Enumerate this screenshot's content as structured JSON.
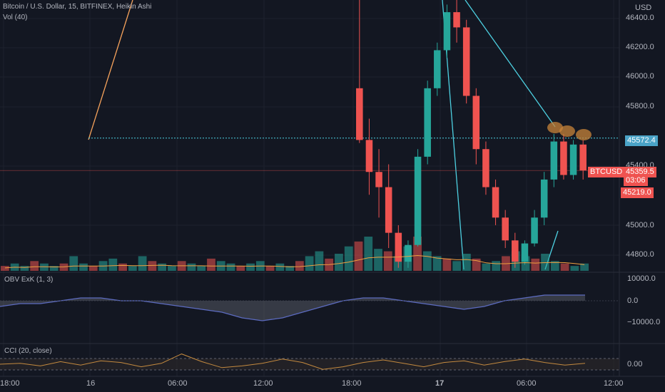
{
  "header": {
    "title": "Bitcoin / U.S. Dollar, 15, BITFINEX, Heikin Ashi",
    "volume_label": "Vol (40)"
  },
  "price_axis": {
    "currency": "USD",
    "ticks": [
      "46400.0",
      "46200.0",
      "46000.0",
      "45800.0",
      "45400.0",
      "45000.0",
      "44800.0"
    ]
  },
  "price_tags": {
    "horizontal_line_value": "45572.4",
    "symbol": "BTCUSD",
    "last_price": "45359.5",
    "countdown": "03:06",
    "low_marker": "45219.0"
  },
  "time_axis": {
    "labels": [
      "18:00",
      "16",
      "06:00",
      "12:00",
      "18:00",
      "17",
      "06:00",
      "12:00"
    ]
  },
  "obv_pane": {
    "label": "OBV ExK (1, 3)",
    "ticks": [
      "10000.0",
      "0.0",
      "−10000.0"
    ]
  },
  "cci_pane": {
    "label": "CCI (20, close)",
    "ticks": [
      "0.00"
    ]
  },
  "colors": {
    "background": "#131722",
    "up": "#26a69a",
    "down": "#ef5350",
    "accent_cyan": "#4dd0e1",
    "trendline_orange": "#f7a35c",
    "obv_line": "#5c6bc0",
    "cci_line": "#c48a3f"
  },
  "chart_data": {
    "type": "candlestick",
    "symbol": "BTCUSD",
    "interval": "15",
    "chart_style": "Heikin Ashi",
    "ylim": [
      44700,
      46480
    ],
    "horizontal_line": 45572.4,
    "last_price": 45359.5,
    "candles": [
      {
        "x": 0,
        "o": 45900,
        "h": 46500,
        "l": 45540,
        "c": 45560
      },
      {
        "x": 1,
        "o": 45560,
        "h": 45700,
        "l": 45200,
        "c": 45350
      },
      {
        "x": 2,
        "o": 45350,
        "h": 45500,
        "l": 45050,
        "c": 45250
      },
      {
        "x": 3,
        "o": 45250,
        "h": 45400,
        "l": 44850,
        "c": 44950
      },
      {
        "x": 4,
        "o": 44950,
        "h": 45000,
        "l": 44720,
        "c": 44760
      },
      {
        "x": 5,
        "o": 44760,
        "h": 44900,
        "l": 44720,
        "c": 44870
      },
      {
        "x": 6,
        "o": 44870,
        "h": 45500,
        "l": 44860,
        "c": 45450
      },
      {
        "x": 7,
        "o": 45450,
        "h": 45950,
        "l": 45400,
        "c": 45900
      },
      {
        "x": 8,
        "o": 45900,
        "h": 46200,
        "l": 45850,
        "c": 46150
      },
      {
        "x": 9,
        "o": 46150,
        "h": 46450,
        "l": 46100,
        "c": 46400
      },
      {
        "x": 10,
        "o": 46400,
        "h": 46520,
        "l": 46200,
        "c": 46300
      },
      {
        "x": 11,
        "o": 46300,
        "h": 46350,
        "l": 45800,
        "c": 45850
      },
      {
        "x": 12,
        "o": 45850,
        "h": 45900,
        "l": 45400,
        "c": 45500
      },
      {
        "x": 13,
        "o": 45500,
        "h": 45550,
        "l": 45200,
        "c": 45250
      },
      {
        "x": 14,
        "o": 45250,
        "h": 45300,
        "l": 45000,
        "c": 45050
      },
      {
        "x": 15,
        "o": 45050,
        "h": 45100,
        "l": 44850,
        "c": 44900
      },
      {
        "x": 16,
        "o": 44900,
        "h": 44950,
        "l": 44720,
        "c": 44760
      },
      {
        "x": 17,
        "o": 44760,
        "h": 44900,
        "l": 44740,
        "c": 44880
      },
      {
        "x": 18,
        "o": 44880,
        "h": 45100,
        "l": 44860,
        "c": 45050
      },
      {
        "x": 19,
        "o": 45050,
        "h": 45350,
        "l": 45000,
        "c": 45300
      },
      {
        "x": 20,
        "o": 45300,
        "h": 45600,
        "l": 45250,
        "c": 45550
      },
      {
        "x": 21,
        "o": 45550,
        "h": 45600,
        "l": 45300,
        "c": 45330
      },
      {
        "x": 22,
        "o": 45330,
        "h": 45560,
        "l": 45300,
        "c": 45530
      },
      {
        "x": 23,
        "o": 45530,
        "h": 45560,
        "l": 45300,
        "c": 45359.5
      }
    ],
    "volume_bars": [
      2,
      3,
      2,
      4,
      3,
      2,
      3,
      6,
      3,
      2,
      4,
      5,
      3,
      2,
      6,
      4,
      3,
      2,
      4,
      3,
      2,
      5,
      4,
      3,
      2,
      3,
      4,
      2,
      3,
      2,
      4,
      6,
      8,
      5,
      7,
      10,
      12,
      14,
      9,
      8,
      6,
      10,
      14,
      8,
      6,
      5,
      4,
      7,
      5,
      3,
      4,
      6,
      8,
      6,
      5,
      7,
      4,
      3,
      2,
      3
    ],
    "obv": [
      -2,
      -1,
      -1,
      0,
      1,
      1,
      0,
      0,
      -1,
      -2,
      -3,
      -4,
      -6,
      -7,
      -6,
      -4,
      -2,
      0,
      1,
      1,
      0,
      -1,
      -2,
      -3,
      -2,
      0,
      1,
      2,
      2,
      2
    ],
    "cci": [
      0,
      10,
      -20,
      30,
      -10,
      40,
      20,
      -30,
      10,
      120,
      30,
      -40,
      -20,
      10,
      60,
      20,
      -60,
      -30,
      20,
      50,
      10,
      -30,
      20,
      40,
      -10,
      30,
      60,
      20,
      -10,
      10
    ]
  }
}
